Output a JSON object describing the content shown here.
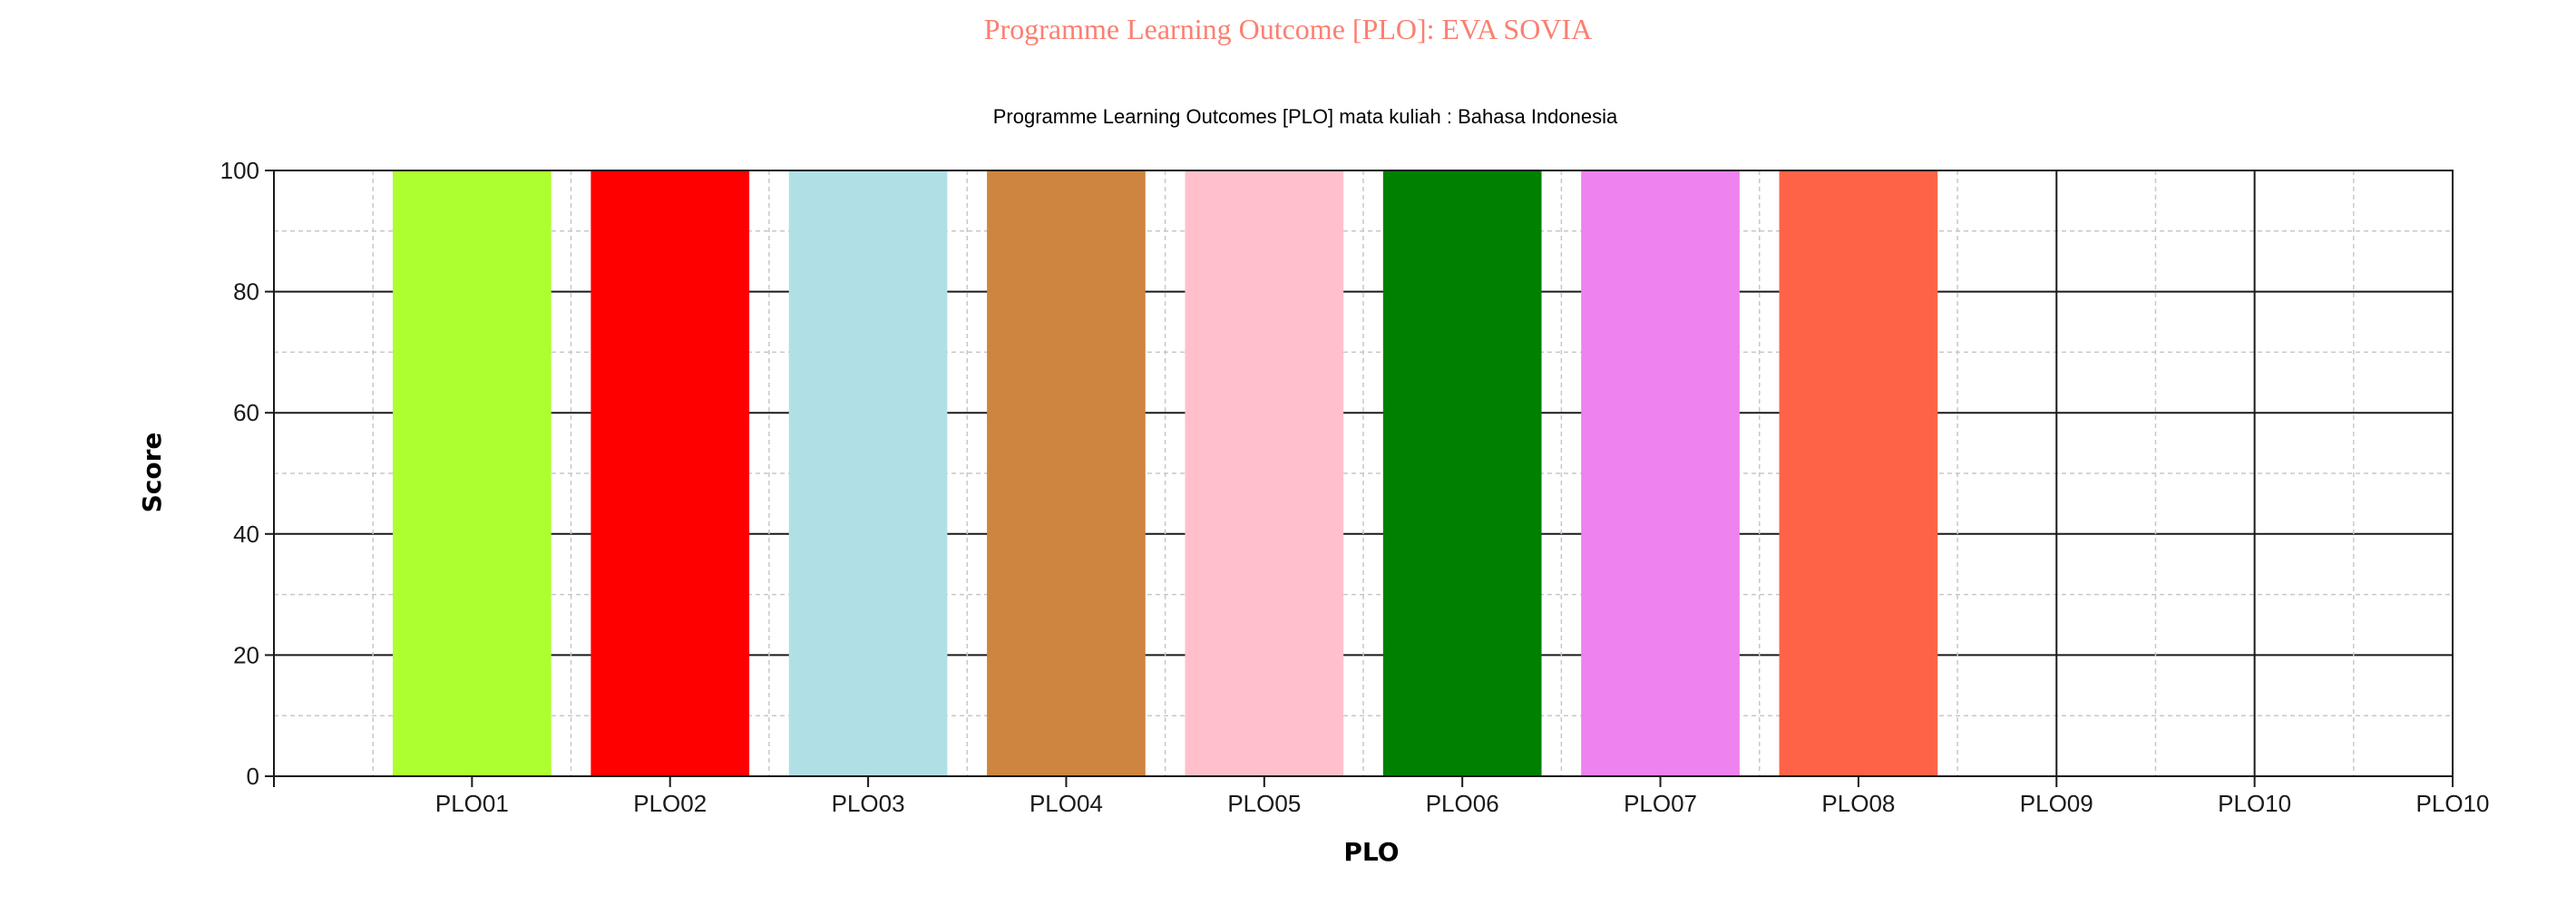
{
  "page": {
    "title": "Programme Learning Outcome [PLO]: EVA SOVIA"
  },
  "chart_data": {
    "type": "bar",
    "title": "Programme Learning Outcomes [PLO] mata kuliah : Bahasa Indonesia",
    "xlabel": "PLO",
    "ylabel": "Score",
    "ylim": [
      0,
      100
    ],
    "yticks": [
      "0",
      "20",
      "40",
      "60",
      "80",
      "100"
    ],
    "grid": true,
    "categories": [
      "PLO01",
      "PLO02",
      "PLO03",
      "PLO04",
      "PLO05",
      "PLO06",
      "PLO07",
      "PLO08",
      "PLO09",
      "PLO10",
      "PLO10"
    ],
    "values": [
      100,
      100,
      100,
      100,
      100,
      100,
      100,
      100,
      null,
      null,
      null
    ],
    "colors": [
      "#adff2f",
      "#ff0000",
      "#b0e0e6",
      "#cd853f",
      "#ffc0cb",
      "#008000",
      "#ee82ee",
      "#ff6347"
    ]
  }
}
